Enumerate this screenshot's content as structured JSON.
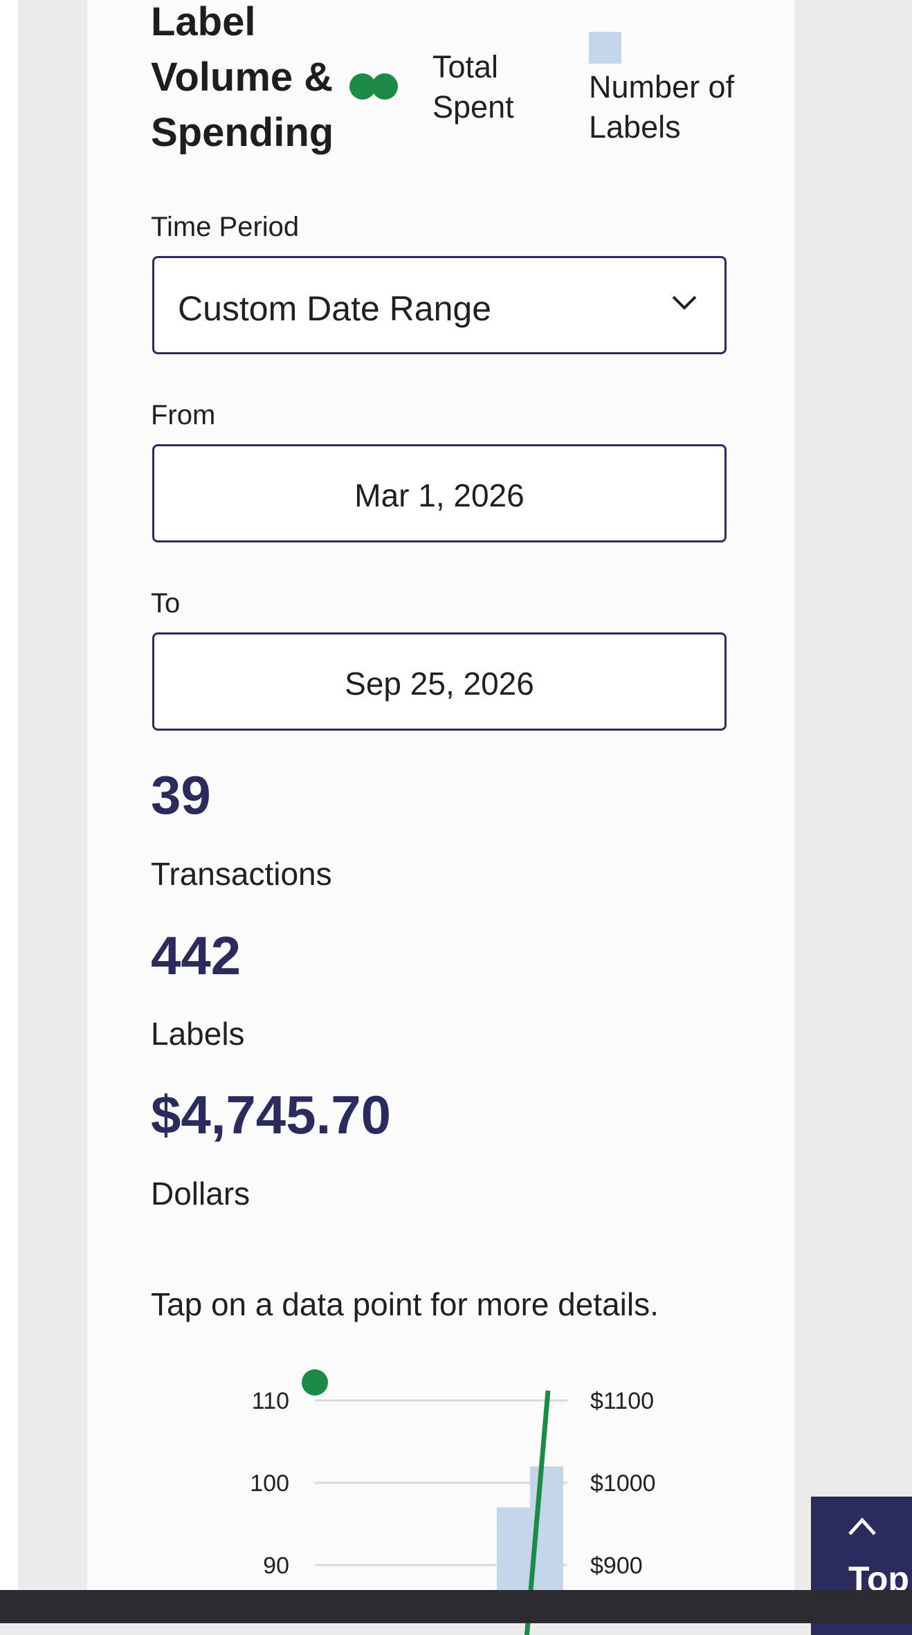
{
  "section": {
    "title": "Label\nVolume &\nSpending",
    "legend": {
      "spent": "Total Spent",
      "labels": "Number of Labels"
    }
  },
  "filters": {
    "time_period_label": "Time Period",
    "time_period_value": "Custom Date Range",
    "from_label": "From",
    "from_value": "Mar 1, 2026",
    "to_label": "To",
    "to_value": "Sep 25, 2026"
  },
  "stats": {
    "transactions_value": "39",
    "transactions_label": "Transactions",
    "labels_value": "442",
    "labels_label": "Labels",
    "dollars_value": "$4,745.70",
    "dollars_label": "Dollars"
  },
  "hint": "Tap on a data point for more details.",
  "chart_data": {
    "type": "bar",
    "y_left_ticks": [
      "110",
      "100",
      "90"
    ],
    "y_right_ticks": [
      "$1100",
      "$1000",
      "$900"
    ],
    "series": [
      {
        "name": "Number of Labels",
        "values": [
          97,
          102
        ]
      },
      {
        "name": "Total Spent",
        "values": [
          880,
          1112
        ]
      }
    ]
  },
  "colors": {
    "accent": "#2c2b5e",
    "spent": "#1e8a48",
    "labels_bar": "#c6d6ea"
  },
  "top_button": {
    "label": "Top"
  }
}
